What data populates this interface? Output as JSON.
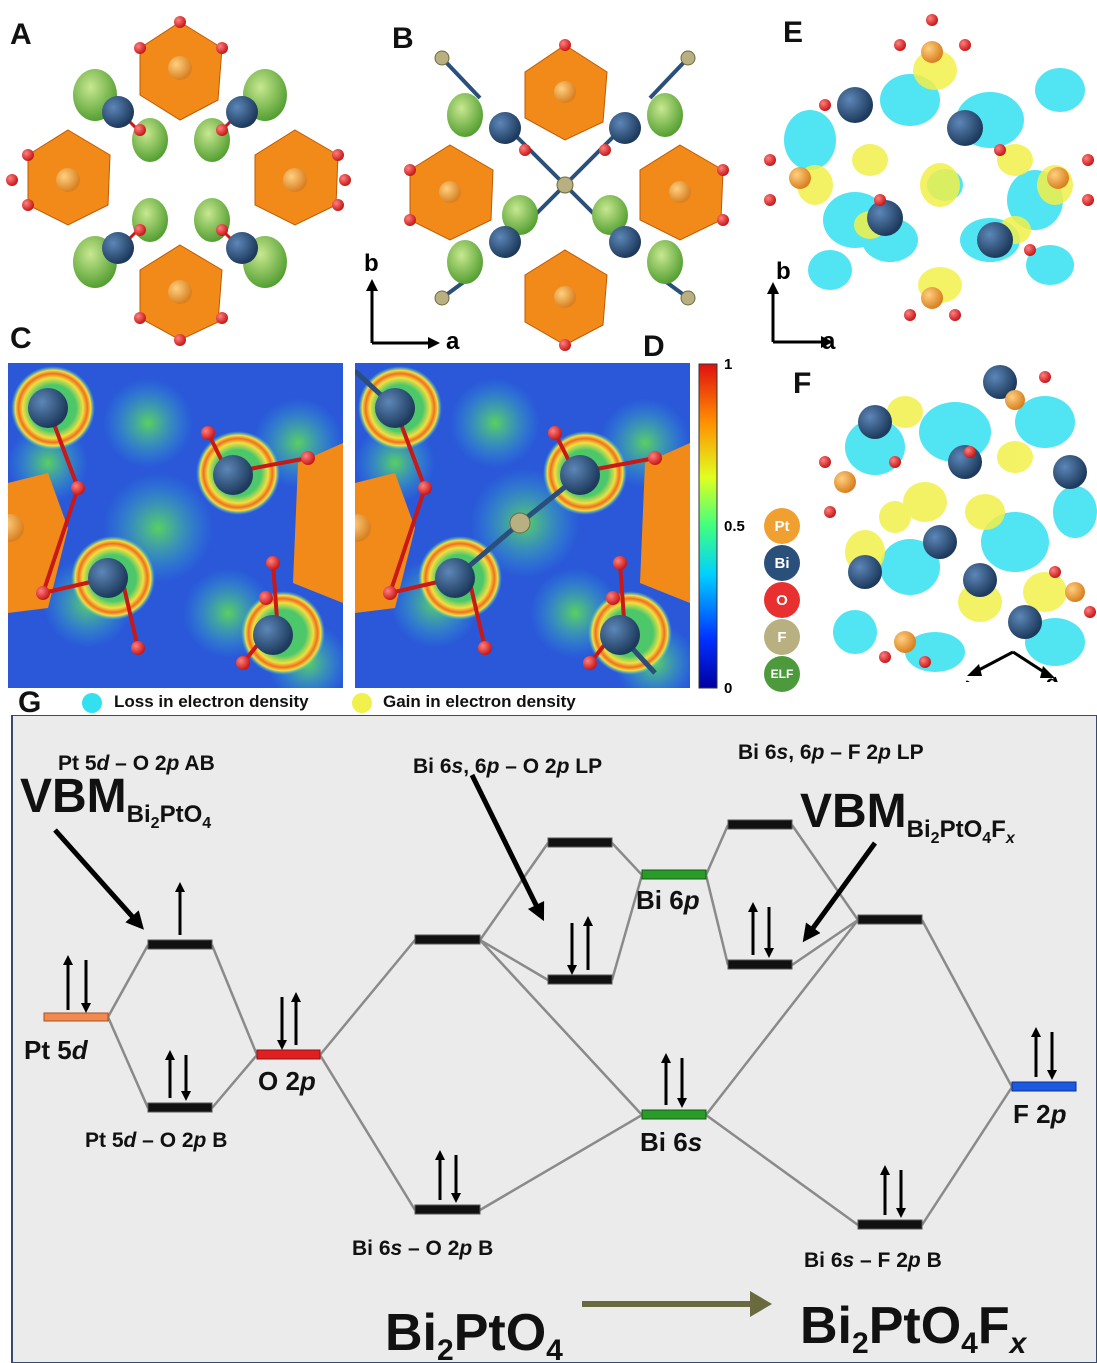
{
  "panel_labels": {
    "A": "A",
    "B": "B",
    "C": "C",
    "D": "D",
    "E": "E",
    "F": "F",
    "G": "G"
  },
  "axes": {
    "b": "b",
    "a": "a"
  },
  "colorbar": {
    "max": "1",
    "mid": "0.5",
    "min": "0"
  },
  "legend_atoms": [
    {
      "label": "Pt",
      "color": "#f0a030"
    },
    {
      "label": "Bi",
      "color": "#2a4f7a"
    },
    {
      "label": "O",
      "color": "#e83030"
    },
    {
      "label": "F",
      "color": "#b8b080"
    },
    {
      "label": "ELF",
      "color": "#4c9a3c"
    }
  ],
  "density_legend": {
    "loss": "Loss in electron density",
    "gain": "Gain in electron density",
    "loss_color": "#33e0f0",
    "gain_color": "#f2f04a"
  },
  "mo_diagram": {
    "left_levels": {
      "pt5d": "Pt 5",
      "o2p": "O 2",
      "ab": "Pt 5",
      "bond": "Pt 5"
    },
    "labels": {
      "pt5d_o2p_ab": [
        "Pt 5",
        "d",
        " – O 2",
        "p",
        " AB"
      ],
      "pt5d_o2p_b": [
        "Pt 5",
        "d",
        " – O 2",
        "p",
        " B"
      ],
      "bi6s_o2p_lp": [
        "Bi 6",
        "s",
        ", 6",
        "p",
        " – O 2",
        "p",
        " LP"
      ],
      "bi6s_f2p_lp": [
        "Bi 6",
        "s",
        ", 6",
        "p",
        " – F 2",
        "p",
        " LP"
      ],
      "bi6s_o2p_b": [
        "Bi 6",
        "s",
        " – O 2",
        "p",
        " B"
      ],
      "bi6s_f2p_b": [
        "Bi 6",
        "s",
        " – F 2",
        "p",
        " B"
      ],
      "pt5d": [
        "Pt 5",
        "d"
      ],
      "o2p": [
        "O 2",
        "p"
      ],
      "bi6p": [
        "Bi 6",
        "p"
      ],
      "bi6s": [
        "Bi 6",
        "s"
      ],
      "f2p": [
        "F 2",
        "p"
      ]
    },
    "vbm_left": {
      "main": "VBM",
      "sub": "Bi",
      "s1": "2",
      "b": "PtO",
      "s2": "4"
    },
    "vbm_right": {
      "main": "VBM",
      "sub": "Bi",
      "s1": "2",
      "b": "PtO",
      "s2": "4",
      "c": "F",
      "s3": "x"
    },
    "formula_left": {
      "a": "Bi",
      "s1": "2",
      "b": "PtO",
      "s2": "4"
    },
    "formula_right": {
      "a": "Bi",
      "s1": "2",
      "b": "PtO",
      "s2": "4",
      "c": "F",
      "s3": "x"
    }
  }
}
